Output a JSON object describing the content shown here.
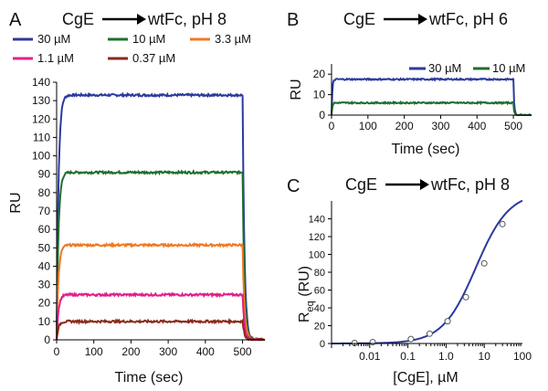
{
  "figure": {
    "panels": [
      {
        "id": "A",
        "letter": "A",
        "title_left": "CgE",
        "title_right": "wtFc, pH 8",
        "xlabel": "Time (sec)",
        "ylabel": "RU"
      },
      {
        "id": "B",
        "letter": "B",
        "title_left": "CgE",
        "title_right": "wtFc, pH 6",
        "xlabel": "Time (sec)",
        "ylabel": "RU"
      },
      {
        "id": "C",
        "letter": "C",
        "title_left": "CgE",
        "title_right": "wtFc, pH 8",
        "xlabel": "[CgE], µM",
        "ylabel_main": "R",
        "ylabel_sub": "eq",
        "ylabel_rest": " (RU)"
      }
    ]
  },
  "chart_data": [
    {
      "panel": "A",
      "type": "line",
      "xlim": [
        0,
        560
      ],
      "ylim": [
        0,
        140
      ],
      "x_ticks": [
        0,
        100,
        200,
        300,
        400,
        500
      ],
      "y_ticks": [
        0,
        10,
        20,
        30,
        40,
        50,
        60,
        70,
        80,
        90,
        100,
        110,
        120,
        130,
        140
      ],
      "association_end_sec": 500,
      "legend_position": "top",
      "series": [
        {
          "name": "30 µM",
          "color": "#2b3a9e",
          "plateau": 133
        },
        {
          "name": "10 µM",
          "color": "#1e6e2e",
          "plateau": 91
        },
        {
          "name": "3.3 µM",
          "color": "#f07820",
          "plateau": 51.5
        },
        {
          "name": "1.1 µM",
          "color": "#e0208a",
          "plateau": 24.5
        },
        {
          "name": "0.37 µM",
          "color": "#8a2a1a",
          "plateau": 10
        }
      ]
    },
    {
      "panel": "B",
      "type": "line",
      "xlim": [
        0,
        550
      ],
      "ylim": [
        0,
        25
      ],
      "x_ticks": [
        0,
        100,
        200,
        300,
        400,
        500
      ],
      "y_ticks": [
        0,
        10,
        20
      ],
      "association_end_sec": 500,
      "legend_position": "top-right",
      "series": [
        {
          "name": "30 µM",
          "color": "#2b3a9e",
          "plateau": 17.5
        },
        {
          "name": "10 µM",
          "color": "#1e6e2e",
          "plateau": 6
        }
      ]
    },
    {
      "panel": "C",
      "type": "scatter",
      "x_scale": "log",
      "xlim": [
        0.001,
        100
      ],
      "ylim": [
        0,
        160
      ],
      "x_ticks": [
        0.01,
        0.1,
        1.0,
        10,
        100
      ],
      "x_tick_labels": [
        "0.01",
        "0.1",
        "1.0",
        "10",
        "100"
      ],
      "y_ticks": [
        0,
        20,
        40,
        60,
        80,
        100,
        120,
        140
      ],
      "fit_color": "#2b3a9e",
      "points": [
        {
          "x": 0.004,
          "y": 0.5
        },
        {
          "x": 0.012,
          "y": 1.5
        },
        {
          "x": 0.12,
          "y": 5
        },
        {
          "x": 0.37,
          "y": 11
        },
        {
          "x": 1.1,
          "y": 25
        },
        {
          "x": 3.3,
          "y": 52
        },
        {
          "x": 10,
          "y": 90
        },
        {
          "x": 30,
          "y": 134
        }
      ],
      "fit": {
        "rmax": 170,
        "kd": 6
      }
    }
  ]
}
